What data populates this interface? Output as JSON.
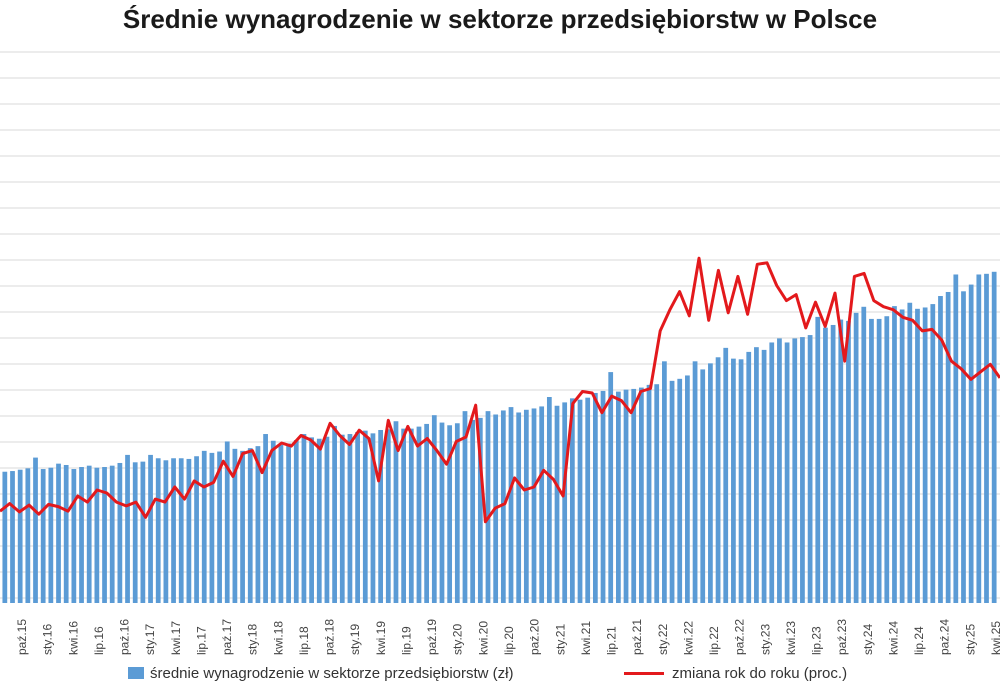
{
  "chart_data": {
    "type": "bar+line",
    "title": "Średnie wynagrodzenie w sektorze przedsiębiorstw w Polsce",
    "x_tick_labels": [
      "paź.15",
      "sty.16",
      "kwi.16",
      "lip.16",
      "paź.16",
      "sty.17",
      "kwi.17",
      "lip.17",
      "paź.17",
      "sty.18",
      "kwi.18",
      "lip.18",
      "paź.18",
      "sty.19",
      "kwi.19",
      "lip.19",
      "paź.19",
      "sty.20",
      "kwi.20",
      "lip.20",
      "paź.20",
      "sty.21",
      "kwi.21",
      "lip.21",
      "paź.21",
      "sty.22",
      "kwi.22",
      "lip.22",
      "paź.22",
      "sty.23",
      "kwi.23",
      "lip.23",
      "paź.23",
      "sty.24",
      "kwi.24",
      "lip.24",
      "paź.24",
      "sty.25",
      "kwi.25"
    ],
    "grid": true,
    "legend_position": "bottom",
    "series": [
      {
        "name": "średnie wynagrodzenie w sektorze przedsiębiorstw (zł)",
        "kind": "bar",
        "color": "#5b9bd5",
        "values": [
          0.39,
          0.392,
          0.396,
          0.4,
          0.432,
          0.398,
          0.402,
          0.414,
          0.41,
          0.398,
          0.404,
          0.408,
          0.402,
          0.404,
          0.408,
          0.416,
          0.44,
          0.418,
          0.42,
          0.44,
          0.43,
          0.424,
          0.43,
          0.43,
          0.428,
          0.436,
          0.452,
          0.446,
          0.45,
          0.48,
          0.458,
          0.452,
          0.46,
          0.466,
          0.502,
          0.482,
          0.47,
          0.474,
          0.484,
          0.502,
          0.492,
          0.488,
          0.494,
          0.526,
          0.5,
          0.502,
          0.508,
          0.512,
          0.504,
          0.514,
          0.516,
          0.54,
          0.518,
          0.518,
          0.524,
          0.532,
          0.558,
          0.536,
          0.528,
          0.534,
          0.57,
          0.544,
          0.55,
          0.57,
          0.56,
          0.572,
          0.582,
          0.566,
          0.574,
          0.578,
          0.584,
          0.612,
          0.586,
          0.596,
          0.608,
          0.604,
          0.61,
          0.624,
          0.63,
          0.686,
          0.628,
          0.634,
          0.636,
          0.64,
          0.648,
          0.65,
          0.718,
          0.66,
          0.666,
          0.676,
          0.718,
          0.694,
          0.712,
          0.73,
          0.758,
          0.726,
          0.724,
          0.746,
          0.76,
          0.752,
          0.774,
          0.786,
          0.774,
          0.786,
          0.79,
          0.796,
          0.85,
          0.818,
          0.826,
          0.842,
          0.838,
          0.862,
          0.88,
          0.844,
          0.844,
          0.852,
          0.882,
          0.872,
          0.892,
          0.874,
          0.878,
          0.888,
          0.912,
          0.924,
          0.976,
          0.926,
          0.946,
          0.976,
          0.978,
          0.984
        ],
        "scale_note": "bar heights expressed as fraction of plotted range"
      },
      {
        "name": "zmiana rok do roku (proc.)",
        "kind": "line",
        "color": "#e3191c",
        "values": [
          0.21,
          0.26,
          0.205,
          0.25,
          0.19,
          0.255,
          0.24,
          0.21,
          0.31,
          0.27,
          0.35,
          0.33,
          0.27,
          0.245,
          0.27,
          0.17,
          0.29,
          0.27,
          0.37,
          0.29,
          0.41,
          0.37,
          0.4,
          0.54,
          0.44,
          0.59,
          0.61,
          0.465,
          0.61,
          0.66,
          0.64,
          0.71,
          0.68,
          0.62,
          0.79,
          0.71,
          0.65,
          0.745,
          0.69,
          0.41,
          0.81,
          0.61,
          0.77,
          0.64,
          0.69,
          0.61,
          0.52,
          0.67,
          0.7,
          0.91,
          0.14,
          0.23,
          0.26,
          0.43,
          0.35,
          0.37,
          0.48,
          0.42,
          0.31,
          0.92,
          1.0,
          0.99,
          0.86,
          0.97,
          0.94,
          0.86,
          1.0,
          1.02,
          1.4,
          1.54,
          1.66,
          1.5,
          1.88,
          1.47,
          1.8,
          1.52,
          1.76,
          1.51,
          1.84,
          1.85,
          1.7,
          1.6,
          1.64,
          1.42,
          1.59,
          1.43,
          1.65,
          1.2,
          1.76,
          1.78,
          1.6,
          1.56,
          1.54,
          1.49,
          1.47,
          1.4,
          1.41,
          1.34,
          1.2,
          1.15,
          1.08,
          1.13,
          1.18,
          1.09
        ],
        "scale_note": "line positions expressed as fraction of plotted range"
      }
    ]
  }
}
